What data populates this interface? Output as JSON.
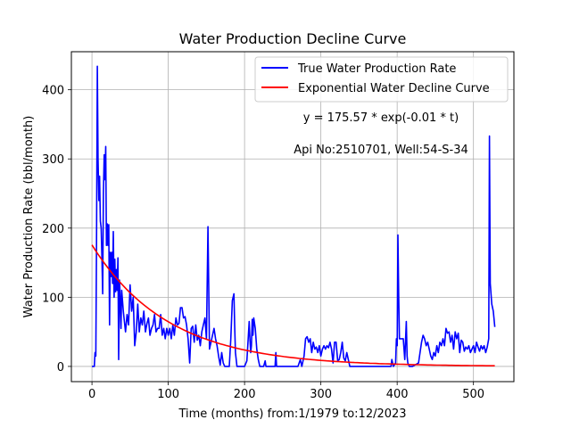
{
  "chart_data": {
    "type": "line",
    "title": "Water Production Decline Curve",
    "xlabel": "Time (months) from:1/1979 to:12/2023",
    "ylabel": "Water Production Rate (bbl/month)",
    "xlim": [
      -27,
      553
    ],
    "ylim": [
      -22,
      455
    ],
    "xticks": [
      0,
      100,
      200,
      300,
      400,
      500
    ],
    "yticks": [
      0,
      100,
      200,
      300,
      400
    ],
    "grid": true,
    "legend_position": "upper-right",
    "annotations": [
      "y = 175.57 * exp(-0.01 * t)",
      "Api No:2510701, Well:54-S-34"
    ],
    "series": [
      {
        "name": "True Water Production Rate",
        "color": "#0000ff",
        "points": [
          [
            0,
            0
          ],
          [
            3,
            0
          ],
          [
            4,
            20
          ],
          [
            5,
            15
          ],
          [
            6,
            180
          ],
          [
            7,
            434
          ],
          [
            8,
            300
          ],
          [
            9,
            240
          ],
          [
            10,
            275
          ],
          [
            11,
            210
          ],
          [
            12,
            200
          ],
          [
            13,
            160
          ],
          [
            14,
            105
          ],
          [
            15,
            250
          ],
          [
            16,
            306
          ],
          [
            17,
            270
          ],
          [
            18,
            318
          ],
          [
            19,
            175
          ],
          [
            20,
            206
          ],
          [
            21,
            175
          ],
          [
            22,
            205
          ],
          [
            23,
            60
          ],
          [
            24,
            165
          ],
          [
            25,
            130
          ],
          [
            26,
            165
          ],
          [
            27,
            120
          ],
          [
            28,
            195
          ],
          [
            29,
            100
          ],
          [
            30,
            155
          ],
          [
            31,
            108
          ],
          [
            32,
            140
          ],
          [
            33,
            110
          ],
          [
            34,
            157
          ],
          [
            35,
            10
          ],
          [
            36,
            125
          ],
          [
            37,
            100
          ],
          [
            38,
            55
          ],
          [
            39,
            110
          ],
          [
            40,
            95
          ],
          [
            41,
            80
          ],
          [
            42,
            70
          ],
          [
            44,
            50
          ],
          [
            46,
            75
          ],
          [
            48,
            60
          ],
          [
            50,
            118
          ],
          [
            52,
            80
          ],
          [
            54,
            100
          ],
          [
            56,
            30
          ],
          [
            58,
            50
          ],
          [
            60,
            90
          ],
          [
            62,
            50
          ],
          [
            64,
            70
          ],
          [
            66,
            60
          ],
          [
            68,
            80
          ],
          [
            70,
            50
          ],
          [
            72,
            62
          ],
          [
            74,
            70
          ],
          [
            76,
            45
          ],
          [
            78,
            55
          ],
          [
            80,
            60
          ],
          [
            82,
            75
          ],
          [
            84,
            50
          ],
          [
            86,
            55
          ],
          [
            88,
            55
          ],
          [
            90,
            75
          ],
          [
            92,
            45
          ],
          [
            94,
            55
          ],
          [
            96,
            40
          ],
          [
            98,
            55
          ],
          [
            100,
            45
          ],
          [
            102,
            55
          ],
          [
            104,
            40
          ],
          [
            106,
            60
          ],
          [
            108,
            45
          ],
          [
            110,
            70
          ],
          [
            112,
            60
          ],
          [
            114,
            62
          ],
          [
            116,
            85
          ],
          [
            118,
            85
          ],
          [
            120,
            70
          ],
          [
            122,
            72
          ],
          [
            124,
            60
          ],
          [
            126,
            40
          ],
          [
            128,
            5
          ],
          [
            130,
            55
          ],
          [
            132,
            58
          ],
          [
            134,
            35
          ],
          [
            136,
            60
          ],
          [
            138,
            38
          ],
          [
            140,
            45
          ],
          [
            142,
            30
          ],
          [
            144,
            50
          ],
          [
            146,
            60
          ],
          [
            148,
            70
          ],
          [
            150,
            40
          ],
          [
            152,
            202
          ],
          [
            153,
            120
          ],
          [
            154,
            25
          ],
          [
            156,
            35
          ],
          [
            158,
            45
          ],
          [
            160,
            55
          ],
          [
            162,
            40
          ],
          [
            164,
            30
          ],
          [
            166,
            15
          ],
          [
            168,
            2
          ],
          [
            170,
            20
          ],
          [
            172,
            5
          ],
          [
            174,
            0
          ],
          [
            180,
            0
          ],
          [
            182,
            40
          ],
          [
            184,
            95
          ],
          [
            186,
            105
          ],
          [
            187,
            60
          ],
          [
            188,
            20
          ],
          [
            190,
            0
          ],
          [
            195,
            0
          ],
          [
            200,
            0
          ],
          [
            203,
            8
          ],
          [
            205,
            45
          ],
          [
            206,
            65
          ],
          [
            207,
            40
          ],
          [
            208,
            20
          ],
          [
            209,
            30
          ],
          [
            210,
            68
          ],
          [
            211,
            45
          ],
          [
            212,
            70
          ],
          [
            214,
            55
          ],
          [
            216,
            25
          ],
          [
            218,
            10
          ],
          [
            220,
            0
          ],
          [
            225,
            0
          ],
          [
            227,
            8
          ],
          [
            228,
            0
          ],
          [
            230,
            0
          ],
          [
            235,
            0
          ],
          [
            240,
            0
          ],
          [
            241,
            20
          ],
          [
            242,
            0
          ],
          [
            250,
            0
          ],
          [
            260,
            0
          ],
          [
            270,
            0
          ],
          [
            273,
            10
          ],
          [
            275,
            0
          ],
          [
            278,
            15
          ],
          [
            280,
            40
          ],
          [
            282,
            43
          ],
          [
            284,
            35
          ],
          [
            286,
            40
          ],
          [
            288,
            20
          ],
          [
            290,
            35
          ],
          [
            292,
            25
          ],
          [
            294,
            28
          ],
          [
            296,
            20
          ],
          [
            298,
            30
          ],
          [
            300,
            15
          ],
          [
            302,
            25
          ],
          [
            304,
            30
          ],
          [
            306,
            25
          ],
          [
            308,
            30
          ],
          [
            310,
            27
          ],
          [
            312,
            35
          ],
          [
            314,
            25
          ],
          [
            316,
            5
          ],
          [
            318,
            35
          ],
          [
            320,
            35
          ],
          [
            322,
            8
          ],
          [
            324,
            10
          ],
          [
            326,
            20
          ],
          [
            328,
            35
          ],
          [
            330,
            12
          ],
          [
            332,
            8
          ],
          [
            334,
            20
          ],
          [
            336,
            10
          ],
          [
            338,
            0
          ],
          [
            345,
            0
          ],
          [
            355,
            0
          ],
          [
            365,
            0
          ],
          [
            375,
            0
          ],
          [
            385,
            0
          ],
          [
            392,
            0
          ],
          [
            393,
            10
          ],
          [
            395,
            0
          ],
          [
            398,
            5
          ],
          [
            399,
            40
          ],
          [
            400,
            30
          ],
          [
            401,
            190
          ],
          [
            402,
            100
          ],
          [
            403,
            40
          ],
          [
            405,
            40
          ],
          [
            408,
            40
          ],
          [
            410,
            10
          ],
          [
            412,
            65
          ],
          [
            413,
            15
          ],
          [
            414,
            5
          ],
          [
            416,
            0
          ],
          [
            420,
            0
          ],
          [
            425,
            3
          ],
          [
            428,
            5
          ],
          [
            430,
            20
          ],
          [
            432,
            35
          ],
          [
            434,
            45
          ],
          [
            436,
            40
          ],
          [
            438,
            30
          ],
          [
            440,
            35
          ],
          [
            442,
            25
          ],
          [
            444,
            15
          ],
          [
            446,
            10
          ],
          [
            448,
            20
          ],
          [
            450,
            15
          ],
          [
            452,
            30
          ],
          [
            454,
            20
          ],
          [
            456,
            35
          ],
          [
            458,
            30
          ],
          [
            460,
            40
          ],
          [
            462,
            30
          ],
          [
            464,
            55
          ],
          [
            466,
            48
          ],
          [
            468,
            50
          ],
          [
            470,
            35
          ],
          [
            472,
            45
          ],
          [
            474,
            25
          ],
          [
            476,
            50
          ],
          [
            478,
            40
          ],
          [
            480,
            48
          ],
          [
            482,
            20
          ],
          [
            484,
            38
          ],
          [
            486,
            35
          ],
          [
            488,
            22
          ],
          [
            490,
            28
          ],
          [
            492,
            25
          ],
          [
            494,
            30
          ],
          [
            496,
            20
          ],
          [
            498,
            25
          ],
          [
            500,
            30
          ],
          [
            502,
            20
          ],
          [
            504,
            35
          ],
          [
            506,
            28
          ],
          [
            508,
            22
          ],
          [
            510,
            30
          ],
          [
            512,
            25
          ],
          [
            514,
            30
          ],
          [
            516,
            20
          ],
          [
            518,
            28
          ],
          [
            520,
            40
          ],
          [
            521,
            333
          ],
          [
            522,
            120
          ],
          [
            524,
            90
          ],
          [
            526,
            80
          ],
          [
            528,
            57
          ]
        ]
      },
      {
        "name": "Exponential Water Decline Curve",
        "color": "#ff0000",
        "fit": {
          "a": 175.57,
          "b": 0.01,
          "t_start": 0,
          "t_end": 528
        }
      }
    ]
  }
}
